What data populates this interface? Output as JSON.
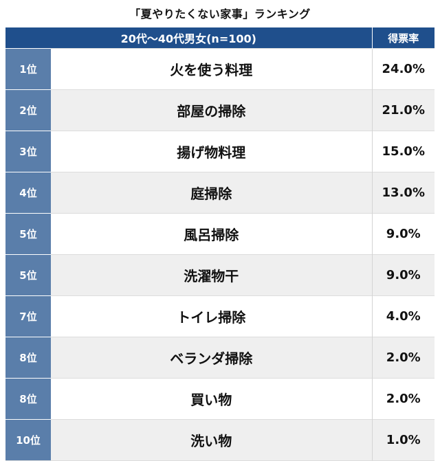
{
  "title": "「夏やりたくない家事」ランキング",
  "chart_data": {
    "type": "table",
    "title": "「夏やりたくない家事」ランキング",
    "columns": [
      "",
      "20代〜40代男女(n=100)",
      "得票率"
    ],
    "rows": [
      {
        "rank": "1位",
        "item": "火を使う料理",
        "rate": "24.0%"
      },
      {
        "rank": "2位",
        "item": "部屋の掃除",
        "rate": "21.0%"
      },
      {
        "rank": "3位",
        "item": "揚げ物料理",
        "rate": "15.0%"
      },
      {
        "rank": "4位",
        "item": "庭掃除",
        "rate": "13.0%"
      },
      {
        "rank": "5位",
        "item": "風呂掃除",
        "rate": "9.0%"
      },
      {
        "rank": "5位",
        "item": "洗濯物干",
        "rate": "9.0%"
      },
      {
        "rank": "7位",
        "item": "トイレ掃除",
        "rate": "4.0%"
      },
      {
        "rank": "8位",
        "item": "ベランダ掃除",
        "rate": "2.0%"
      },
      {
        "rank": "8位",
        "item": "買い物",
        "rate": "2.0%"
      },
      {
        "rank": "10位",
        "item": "洗い物",
        "rate": "1.0%"
      }
    ],
    "values": [
      24.0,
      21.0,
      15.0,
      13.0,
      9.0,
      9.0,
      4.0,
      2.0,
      2.0,
      1.0
    ],
    "unit": "%"
  },
  "colors": {
    "header_bg": "#1f4f8c",
    "rank_bg": "#5a7eaa",
    "stripe_bg": "#efefef",
    "row_bg": "#ffffff"
  }
}
